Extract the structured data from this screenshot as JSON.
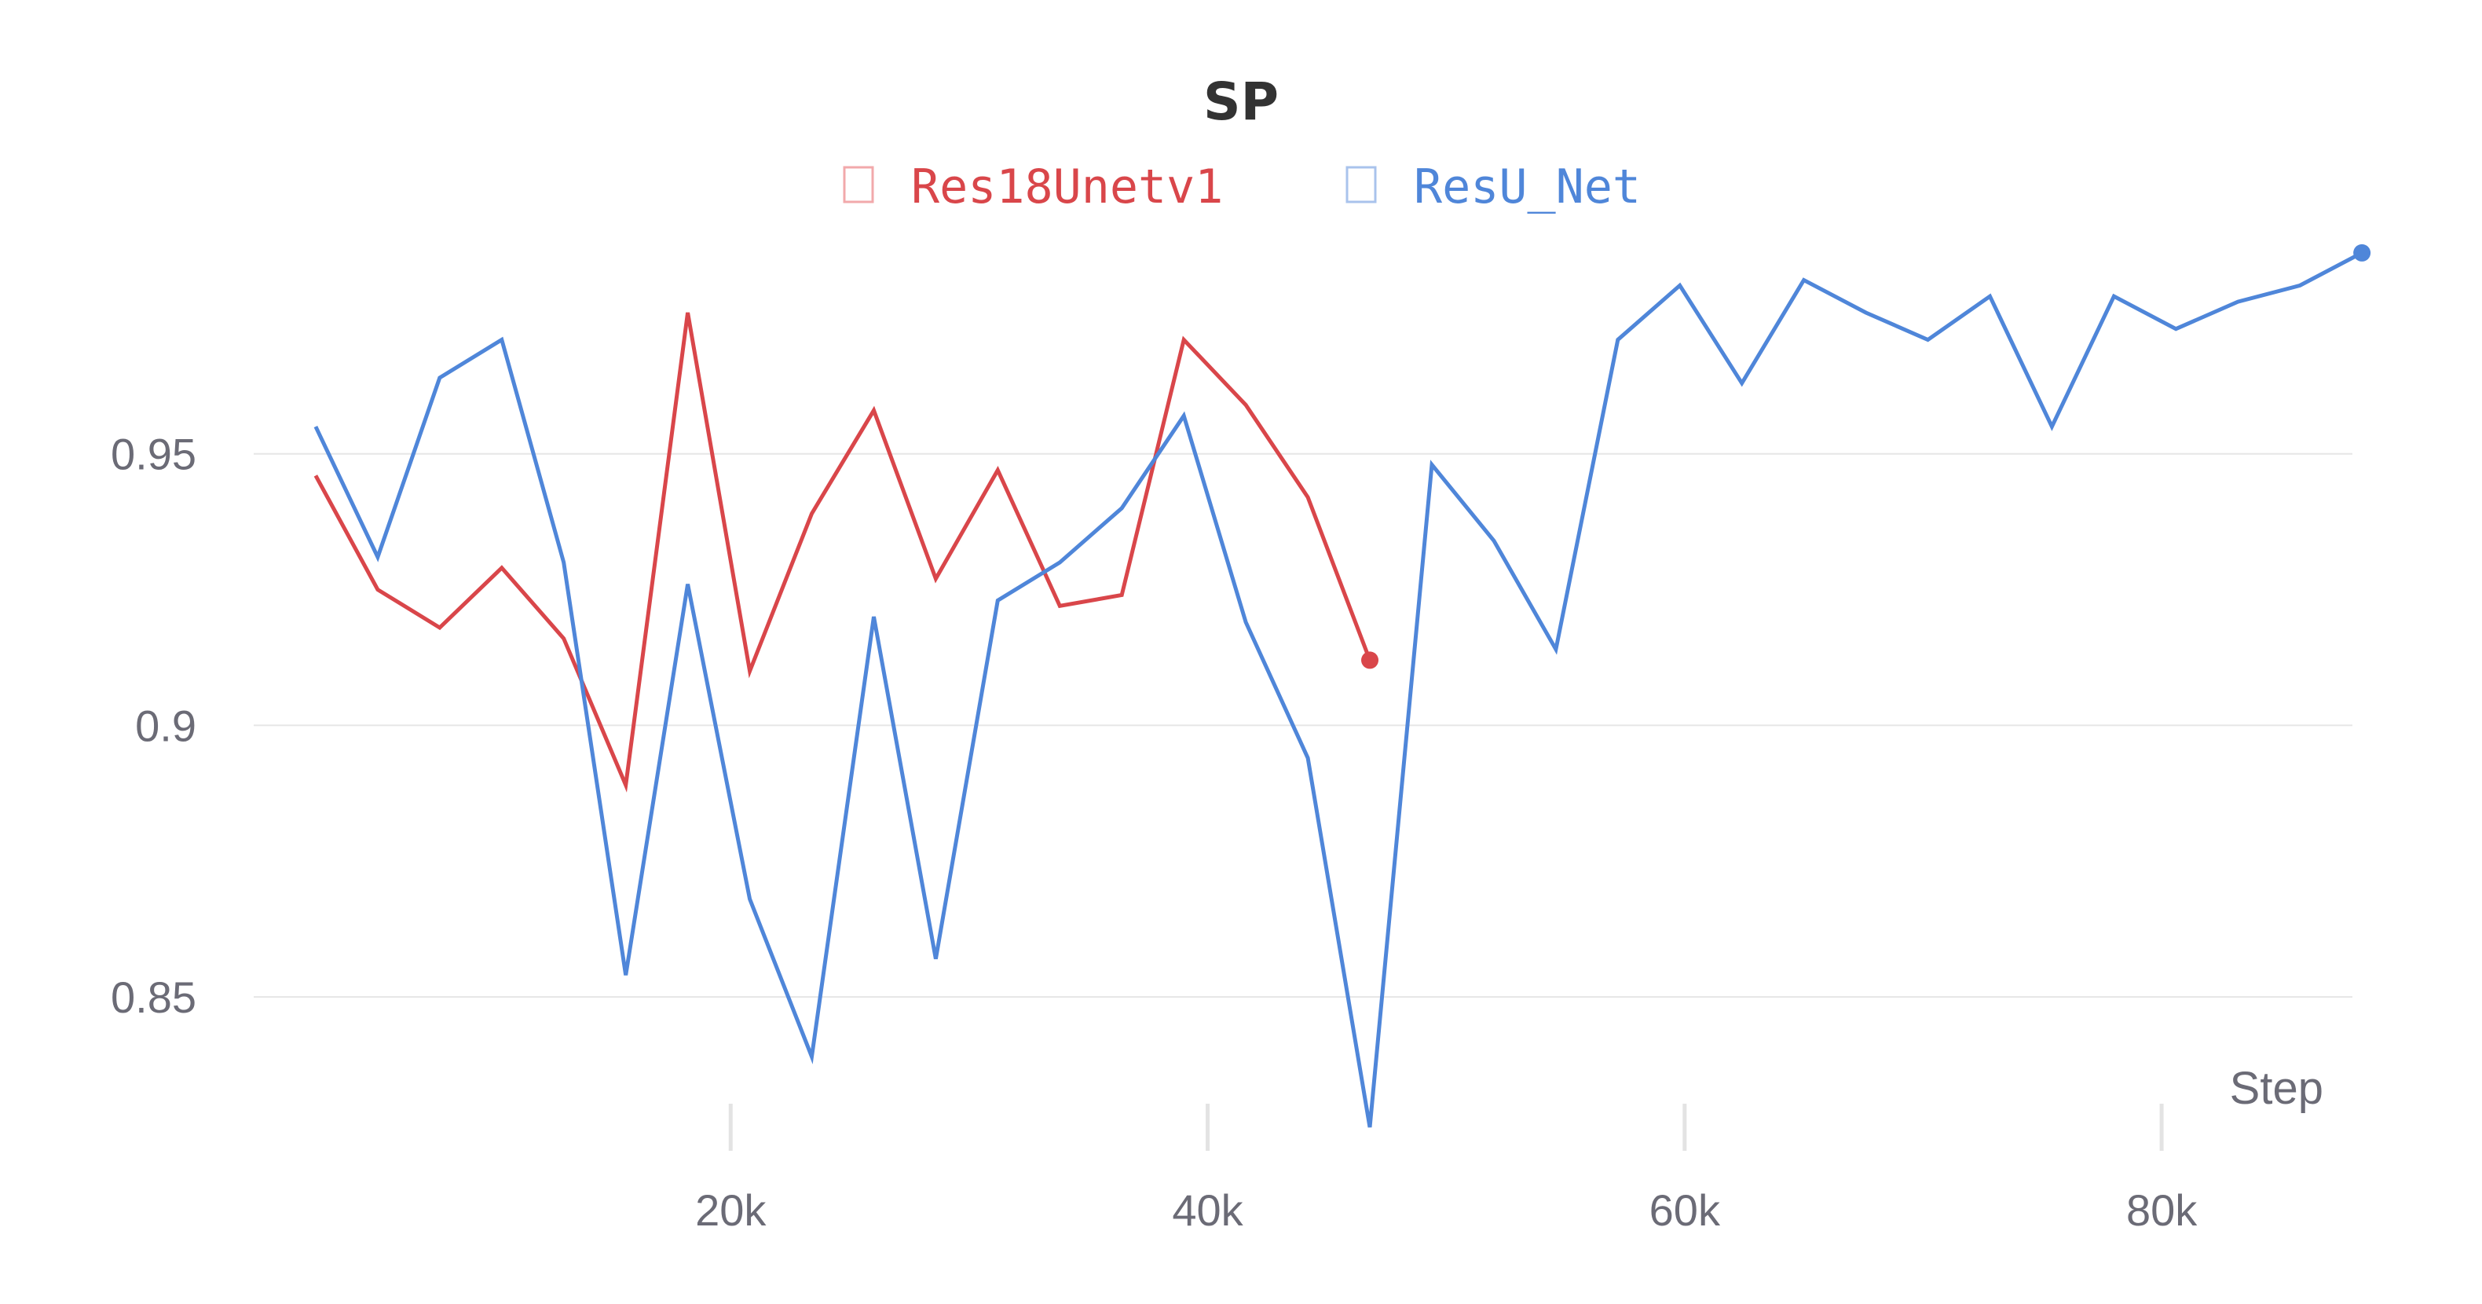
{
  "chart_data": {
    "type": "line",
    "title": "SP",
    "xlabel": "Step",
    "ylabel": "",
    "xlim": [
      0,
      88000
    ],
    "ylim": [
      0.826,
      0.988
    ],
    "yticks": [
      0.85,
      0.9,
      0.95
    ],
    "ytick_labels": [
      "0.85",
      "0.9",
      "0.95"
    ],
    "xticks": [
      20000,
      40000,
      60000,
      80000
    ],
    "xtick_labels": [
      "20k",
      "40k",
      "60k",
      "80k"
    ],
    "grid": true,
    "legend_position": "top-center",
    "series": [
      {
        "name": "Res18Unetv1",
        "color": "#d9464a",
        "x": [
          2600,
          5200,
          7800,
          10400,
          13000,
          15600,
          18200,
          20800,
          23400,
          26000,
          28600,
          31200,
          33800,
          36400,
          39000,
          41600,
          44200,
          46800
        ],
        "y": [
          0.946,
          0.925,
          0.918,
          0.929,
          0.916,
          0.889,
          0.976,
          0.91,
          0.939,
          0.958,
          0.927,
          0.947,
          0.922,
          0.924,
          0.971,
          0.959,
          0.942,
          0.912
        ]
      },
      {
        "name": "ResU_Net",
        "color": "#4f86d9",
        "x": [
          2600,
          5200,
          7800,
          10400,
          13000,
          15600,
          18200,
          20800,
          23400,
          26000,
          28600,
          31200,
          33800,
          36400,
          39000,
          41600,
          44200,
          46800,
          49400,
          52000,
          54600,
          57200,
          59800,
          62400,
          65000,
          67600,
          70200,
          72800,
          75400,
          78000,
          80600,
          83200,
          85800,
          88400
        ],
        "y": [
          0.955,
          0.931,
          0.964,
          0.971,
          0.93,
          0.854,
          0.926,
          0.868,
          0.839,
          0.92,
          0.857,
          0.923,
          0.93,
          0.94,
          0.957,
          0.919,
          0.894,
          0.826,
          0.948,
          0.934,
          0.914,
          0.971,
          0.981,
          0.963,
          0.982,
          0.976,
          0.971,
          0.979,
          0.955,
          0.979,
          0.973,
          0.978,
          0.981,
          0.987
        ]
      }
    ]
  }
}
